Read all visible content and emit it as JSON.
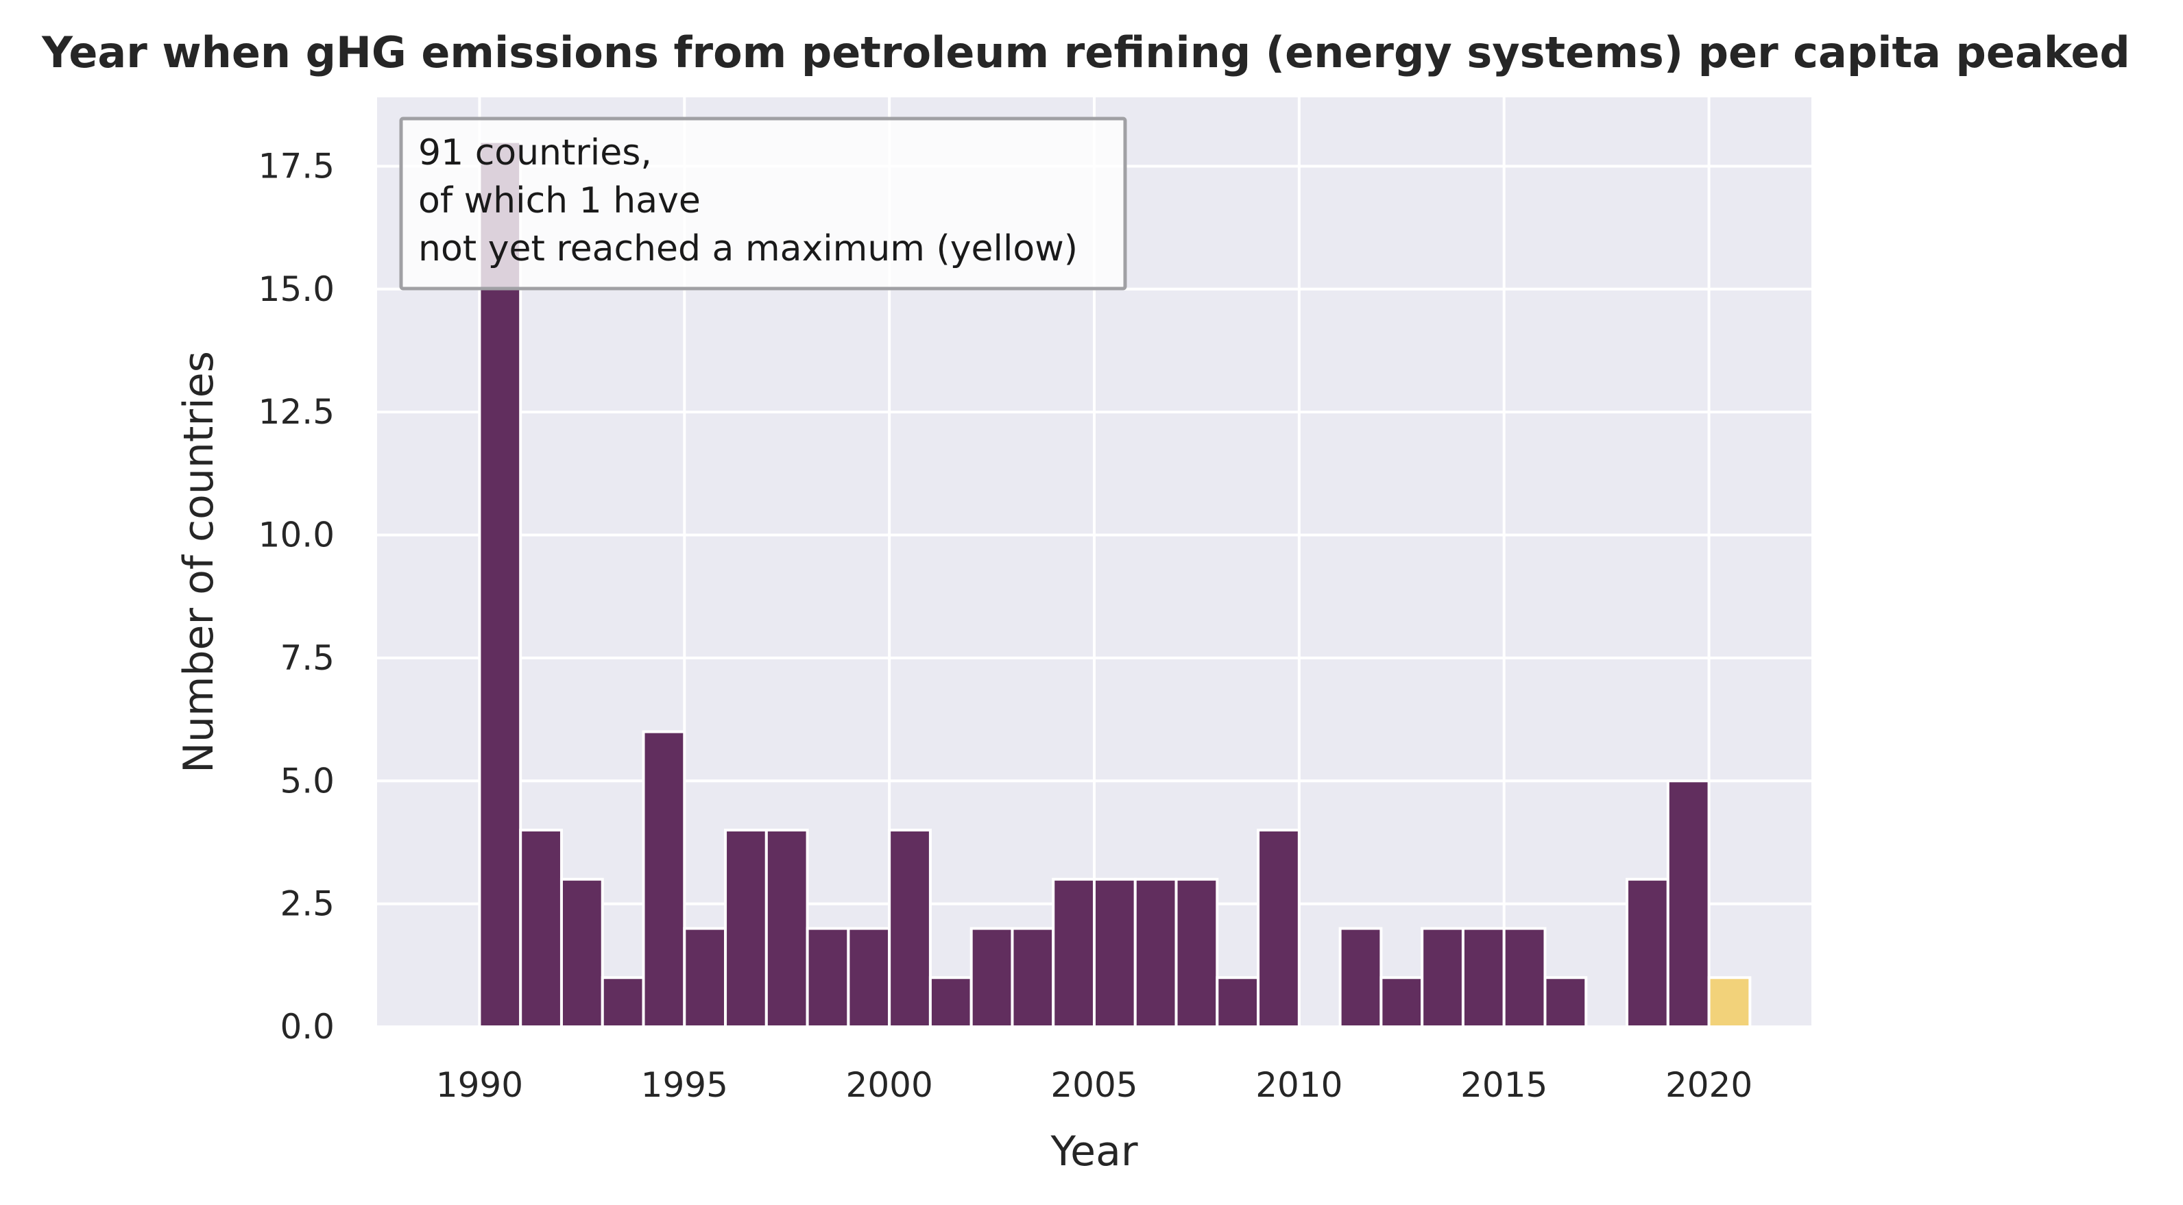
{
  "chart_data": {
    "type": "bar",
    "title": "Year when gHG emissions from petroleum refining (energy systems) per capita peaked",
    "xlabel": "Year",
    "ylabel": "Number of countries",
    "xlim": [
      1987.5,
      2022.5
    ],
    "ylim": [
      0,
      18.9
    ],
    "xticks": [
      1990,
      1995,
      2000,
      2005,
      2010,
      2015,
      2020
    ],
    "yticks": [
      0.0,
      2.5,
      5.0,
      7.5,
      10.0,
      12.5,
      15.0,
      17.5
    ],
    "ytick_labels": [
      "0.0",
      "2.5",
      "5.0",
      "7.5",
      "10.0",
      "12.5",
      "15.0",
      "17.5"
    ],
    "grid": true,
    "background": "#eaeaf2",
    "colors": {
      "peaked": "#612e5e",
      "not_peaked": "#f2d27a",
      "grid": "#ffffff"
    },
    "bin_width": 1,
    "bars": [
      {
        "x": 1990,
        "value": 18,
        "group": "peaked"
      },
      {
        "x": 1991,
        "value": 4,
        "group": "peaked"
      },
      {
        "x": 1992,
        "value": 3,
        "group": "peaked"
      },
      {
        "x": 1993,
        "value": 1,
        "group": "peaked"
      },
      {
        "x": 1994,
        "value": 6,
        "group": "peaked"
      },
      {
        "x": 1995,
        "value": 2,
        "group": "peaked"
      },
      {
        "x": 1996,
        "value": 4,
        "group": "peaked"
      },
      {
        "x": 1997,
        "value": 4,
        "group": "peaked"
      },
      {
        "x": 1998,
        "value": 2,
        "group": "peaked"
      },
      {
        "x": 1999,
        "value": 2,
        "group": "peaked"
      },
      {
        "x": 2000,
        "value": 4,
        "group": "peaked"
      },
      {
        "x": 2001,
        "value": 1,
        "group": "peaked"
      },
      {
        "x": 2002,
        "value": 2,
        "group": "peaked"
      },
      {
        "x": 2003,
        "value": 2,
        "group": "peaked"
      },
      {
        "x": 2004,
        "value": 3,
        "group": "peaked"
      },
      {
        "x": 2005,
        "value": 3,
        "group": "peaked"
      },
      {
        "x": 2006,
        "value": 3,
        "group": "peaked"
      },
      {
        "x": 2007,
        "value": 3,
        "group": "peaked"
      },
      {
        "x": 2008,
        "value": 1,
        "group": "peaked"
      },
      {
        "x": 2009,
        "value": 4,
        "group": "peaked"
      },
      {
        "x": 2010,
        "value": 0,
        "group": "peaked"
      },
      {
        "x": 2011,
        "value": 2,
        "group": "peaked"
      },
      {
        "x": 2012,
        "value": 1,
        "group": "peaked"
      },
      {
        "x": 2013,
        "value": 2,
        "group": "peaked"
      },
      {
        "x": 2014,
        "value": 2,
        "group": "peaked"
      },
      {
        "x": 2015,
        "value": 2,
        "group": "peaked"
      },
      {
        "x": 2016,
        "value": 1,
        "group": "peaked"
      },
      {
        "x": 2017,
        "value": 0,
        "group": "peaked"
      },
      {
        "x": 2018,
        "value": 3,
        "group": "peaked"
      },
      {
        "x": 2019,
        "value": 5,
        "group": "peaked"
      },
      {
        "x": 2020,
        "value": 1,
        "group": "not_peaked"
      }
    ],
    "annotation": {
      "lines": [
        "91 countries,",
        "of which 1 have",
        "not yet reached a maximum (yellow)"
      ],
      "placement": "top-left"
    }
  }
}
